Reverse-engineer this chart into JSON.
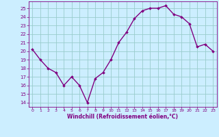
{
  "x": [
    0,
    1,
    2,
    3,
    4,
    5,
    6,
    7,
    8,
    9,
    10,
    11,
    12,
    13,
    14,
    15,
    16,
    17,
    18,
    19,
    20,
    21,
    22,
    23
  ],
  "y": [
    20.2,
    19.0,
    18.0,
    17.5,
    16.0,
    17.0,
    16.0,
    14.0,
    16.8,
    17.5,
    19.0,
    21.0,
    22.2,
    23.8,
    24.7,
    25.0,
    25.0,
    25.3,
    24.3,
    24.0,
    23.2,
    20.5,
    20.8,
    20.0
  ],
  "line_color": "#800080",
  "marker_color": "#800080",
  "bg_color": "#cceeff",
  "grid_color": "#99cccc",
  "xlabel": "Windchill (Refroidissement éolien,°C)",
  "xlabel_color": "#800080",
  "tick_color": "#800080",
  "ylim": [
    13.5,
    25.8
  ],
  "xlim": [
    -0.5,
    23.5
  ],
  "yticks": [
    14,
    15,
    16,
    17,
    18,
    19,
    20,
    21,
    22,
    23,
    24,
    25
  ],
  "xticks": [
    0,
    1,
    2,
    3,
    4,
    5,
    6,
    7,
    8,
    9,
    10,
    11,
    12,
    13,
    14,
    15,
    16,
    17,
    18,
    19,
    20,
    21,
    22,
    23
  ],
  "figsize": [
    3.2,
    2.0
  ],
  "dpi": 100
}
